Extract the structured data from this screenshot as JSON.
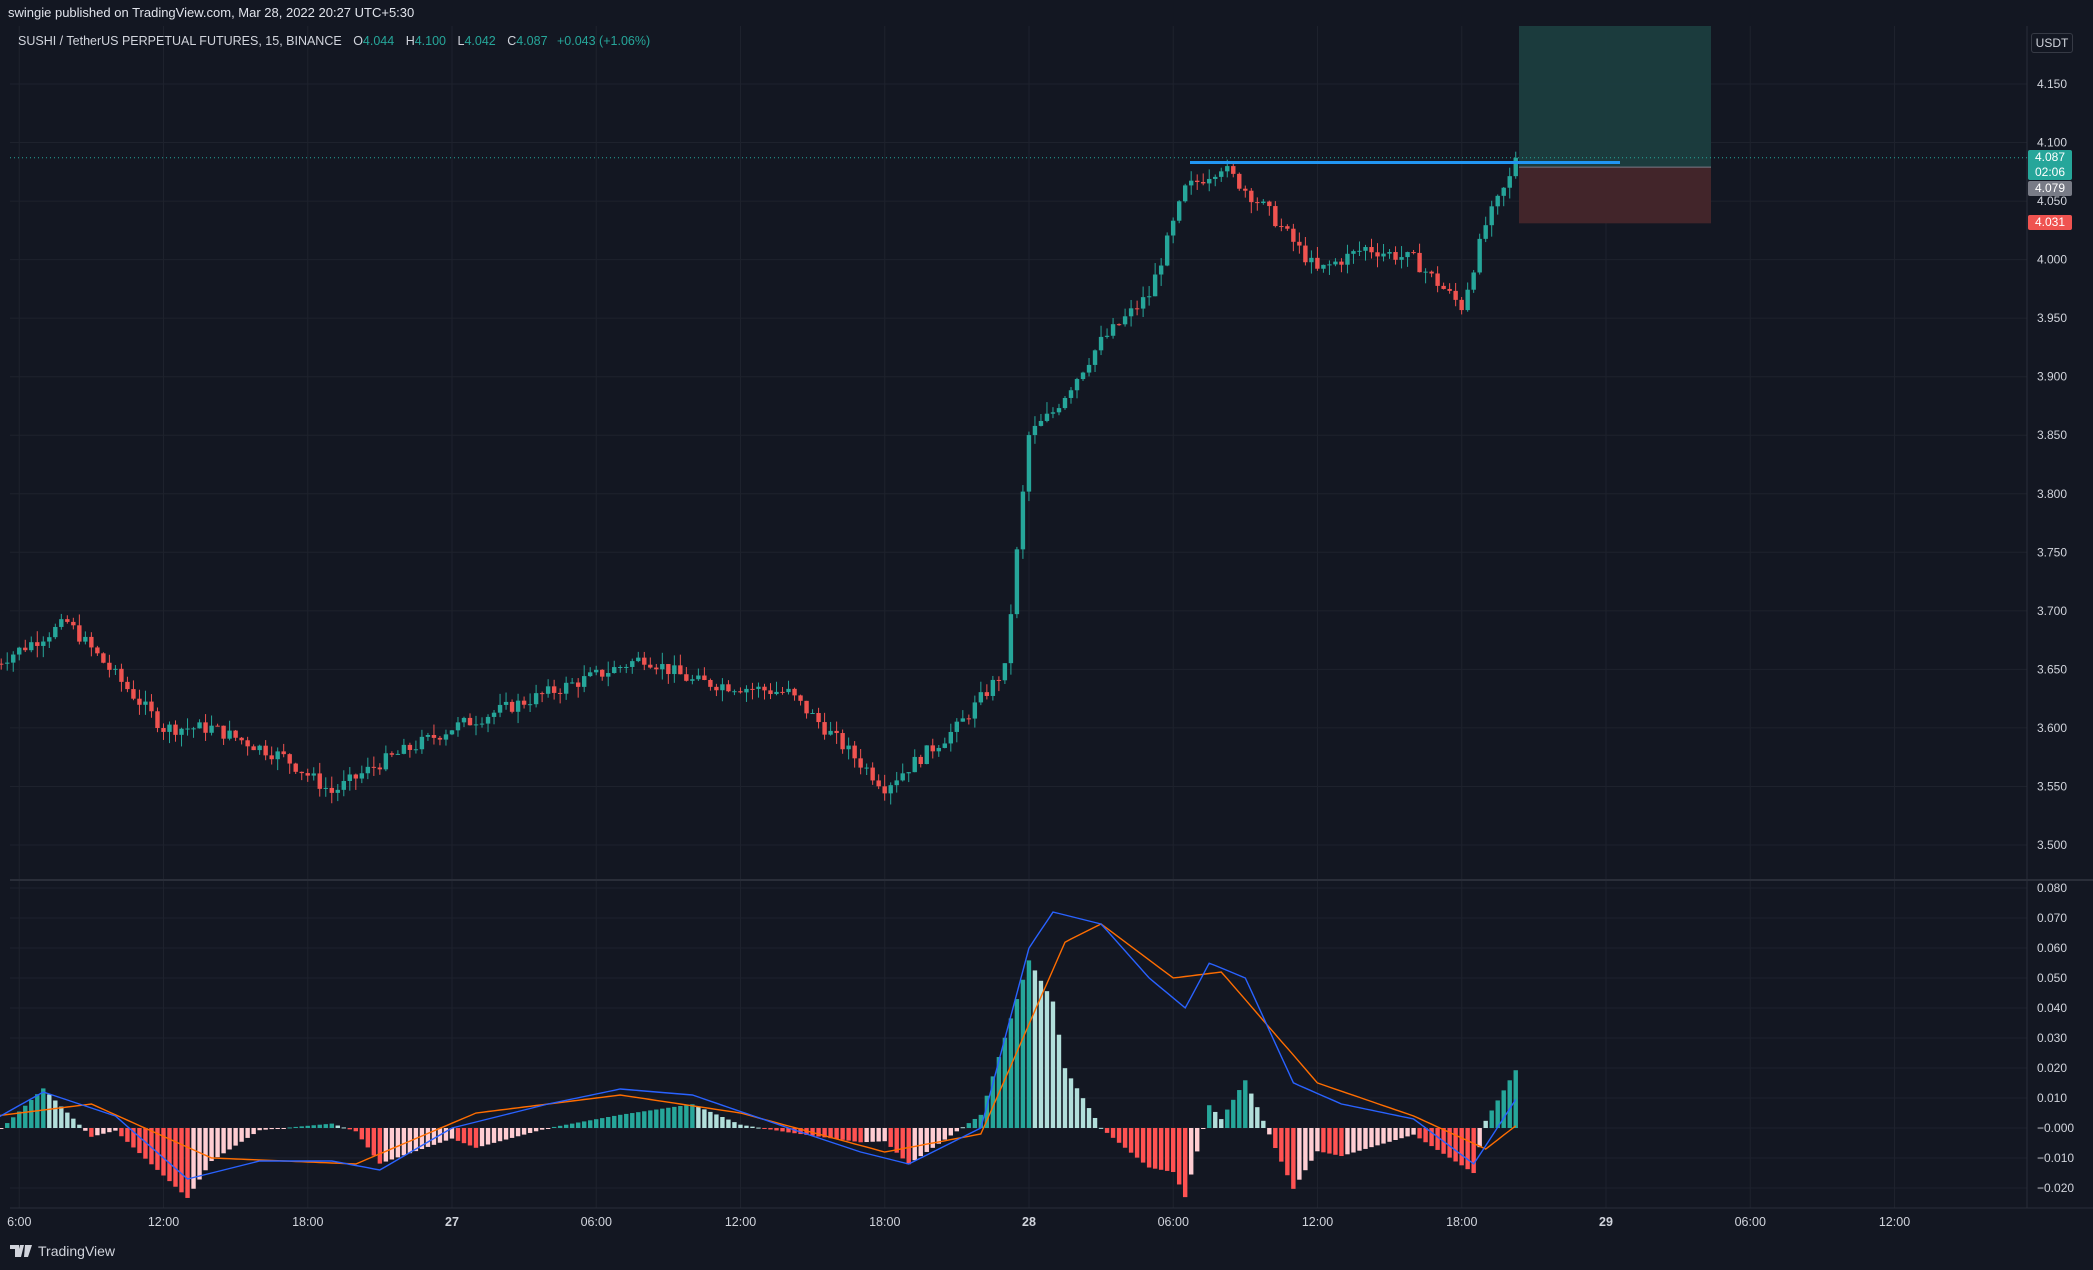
{
  "header": {
    "published": "swingie published on TradingView.com, Mar 28, 2022 20:27 UTC+5:30"
  },
  "legend": {
    "symbol": "SUSHI / TetherUS PERPETUAL FUTURES, 15, BINANCE",
    "o_label": "O",
    "o_value": "4.044",
    "h_label": "H",
    "h_value": "4.100",
    "l_label": "L",
    "l_value": "4.042",
    "c_label": "C",
    "c_value": "4.087",
    "change": "+0.043 (+1.06%)"
  },
  "price_axis": {
    "currency": "USDT",
    "last_price": "4.087",
    "countdown": "02:06",
    "entry_price": "4.079",
    "stop_price": "4.031"
  },
  "brand": "TradingView",
  "colors": {
    "up": "#26a69a",
    "down": "#ef5350",
    "macd_line": "#2962ff",
    "signal_line": "#ff6d00",
    "hist_up_strong": "#26a69a",
    "hist_up_weak": "#b2dfdb",
    "hist_down_strong": "#ff5252",
    "hist_down_weak": "#ffcdd2",
    "level_line": "#2196f3",
    "target_zone": "#1b3d3f",
    "stop_zone": "#45262b"
  },
  "chart_data": [
    {
      "type": "candlestick",
      "title": "SUSHI / TetherUS PERPETUAL FUTURES, 15, BINANCE",
      "x_ticks": [
        "6:00",
        "12:00",
        "18:00",
        "27",
        "06:00",
        "12:00",
        "18:00",
        "28",
        "06:00",
        "12:00",
        "18:00",
        "29",
        "06:00",
        "12:00"
      ],
      "y_ticks": [
        "3.500",
        "3.550",
        "3.600",
        "3.650",
        "3.700",
        "3.750",
        "3.800",
        "3.850",
        "3.900",
        "3.950",
        "4.000",
        "4.050",
        "4.100",
        "4.150"
      ],
      "ylim": [
        3.47,
        4.2
      ],
      "key_points": [
        {
          "t": "26 05:00",
          "price": 3.655
        },
        {
          "t": "26 08:00",
          "price": 3.69
        },
        {
          "t": "26 12:00",
          "price": 3.6
        },
        {
          "t": "26 14:00",
          "price": 3.6
        },
        {
          "t": "26 17:00",
          "price": 3.575
        },
        {
          "t": "26 19:00",
          "price": 3.545
        },
        {
          "t": "26 21:00",
          "price": 3.57
        },
        {
          "t": "27 00:00",
          "price": 3.6
        },
        {
          "t": "27 04:00",
          "price": 3.63
        },
        {
          "t": "27 08:00",
          "price": 3.66
        },
        {
          "t": "27 10:00",
          "price": 3.64
        },
        {
          "t": "27 14:00",
          "price": 3.63
        },
        {
          "t": "27 16:00",
          "price": 3.59
        },
        {
          "t": "27 18:00",
          "price": 3.55
        },
        {
          "t": "27 21:00",
          "price": 3.6
        },
        {
          "t": "27 23:00",
          "price": 3.65
        },
        {
          "t": "28 00:00",
          "price": 3.85
        },
        {
          "t": "28 01:00",
          "price": 3.87
        },
        {
          "t": "28 03:00",
          "price": 3.93
        },
        {
          "t": "28 05:00",
          "price": 3.97
        },
        {
          "t": "28 06:30",
          "price": 4.06
        },
        {
          "t": "28 08:00",
          "price": 4.08
        },
        {
          "t": "28 10:00",
          "price": 4.04
        },
        {
          "t": "28 12:00",
          "price": 3.99
        },
        {
          "t": "28 14:00",
          "price": 4.01
        },
        {
          "t": "28 16:00",
          "price": 4.0
        },
        {
          "t": "28 18:00",
          "price": 3.96
        },
        {
          "t": "28 19:00",
          "price": 4.03
        },
        {
          "t": "28 20:27",
          "price": 4.087
        }
      ],
      "last": {
        "open": 4.044,
        "high": 4.1,
        "low": 4.042,
        "close": 4.087
      },
      "horizontal_level": 4.083,
      "position": {
        "entry": 4.079,
        "stop": 4.031,
        "target": 4.2
      }
    },
    {
      "type": "macd",
      "y_ticks": [
        "0.080",
        "0.070",
        "0.060",
        "0.050",
        "0.040",
        "0.030",
        "0.020",
        "0.010",
        "−0.000",
        "−0.010",
        "−0.020"
      ],
      "ylim": [
        -0.025,
        0.082
      ],
      "macd_key_points": [
        {
          "t": "26 05:00",
          "v": 0.003
        },
        {
          "t": "26 07:00",
          "v": 0.012
        },
        {
          "t": "26 10:00",
          "v": 0.004
        },
        {
          "t": "26 13:00",
          "v": -0.017
        },
        {
          "t": "26 16:00",
          "v": -0.011
        },
        {
          "t": "26 19:00",
          "v": -0.011
        },
        {
          "t": "26 21:00",
          "v": -0.014
        },
        {
          "t": "27 00:00",
          "v": 0.0
        },
        {
          "t": "27 04:00",
          "v": 0.008
        },
        {
          "t": "27 07:00",
          "v": 0.013
        },
        {
          "t": "27 10:00",
          "v": 0.011
        },
        {
          "t": "27 14:00",
          "v": 0.0
        },
        {
          "t": "27 17:00",
          "v": -0.008
        },
        {
          "t": "27 19:00",
          "v": -0.012
        },
        {
          "t": "27 22:00",
          "v": 0.0
        },
        {
          "t": "28 00:00",
          "v": 0.06
        },
        {
          "t": "28 01:00",
          "v": 0.072
        },
        {
          "t": "28 03:00",
          "v": 0.068
        },
        {
          "t": "28 05:00",
          "v": 0.05
        },
        {
          "t": "28 06:30",
          "v": 0.04
        },
        {
          "t": "28 07:30",
          "v": 0.055
        },
        {
          "t": "28 09:00",
          "v": 0.05
        },
        {
          "t": "28 11:00",
          "v": 0.015
        },
        {
          "t": "28 13:00",
          "v": 0.008
        },
        {
          "t": "28 16:00",
          "v": 0.003
        },
        {
          "t": "28 18:30",
          "v": -0.012
        },
        {
          "t": "28 20:27",
          "v": 0.012
        }
      ],
      "signal_key_points": [
        {
          "t": "26 05:00",
          "v": 0.004
        },
        {
          "t": "26 09:00",
          "v": 0.008
        },
        {
          "t": "26 14:00",
          "v": -0.01
        },
        {
          "t": "26 20:00",
          "v": -0.012
        },
        {
          "t": "27 01:00",
          "v": 0.005
        },
        {
          "t": "27 07:00",
          "v": 0.011
        },
        {
          "t": "27 12:00",
          "v": 0.005
        },
        {
          "t": "27 18:00",
          "v": -0.008
        },
        {
          "t": "27 22:00",
          "v": -0.002
        },
        {
          "t": "28 01:30",
          "v": 0.062
        },
        {
          "t": "28 03:00",
          "v": 0.068
        },
        {
          "t": "28 06:00",
          "v": 0.05
        },
        {
          "t": "28 08:00",
          "v": 0.052
        },
        {
          "t": "28 12:00",
          "v": 0.015
        },
        {
          "t": "28 16:00",
          "v": 0.004
        },
        {
          "t": "28 19:00",
          "v": -0.007
        },
        {
          "t": "28 20:27",
          "v": 0.002
        }
      ]
    }
  ]
}
